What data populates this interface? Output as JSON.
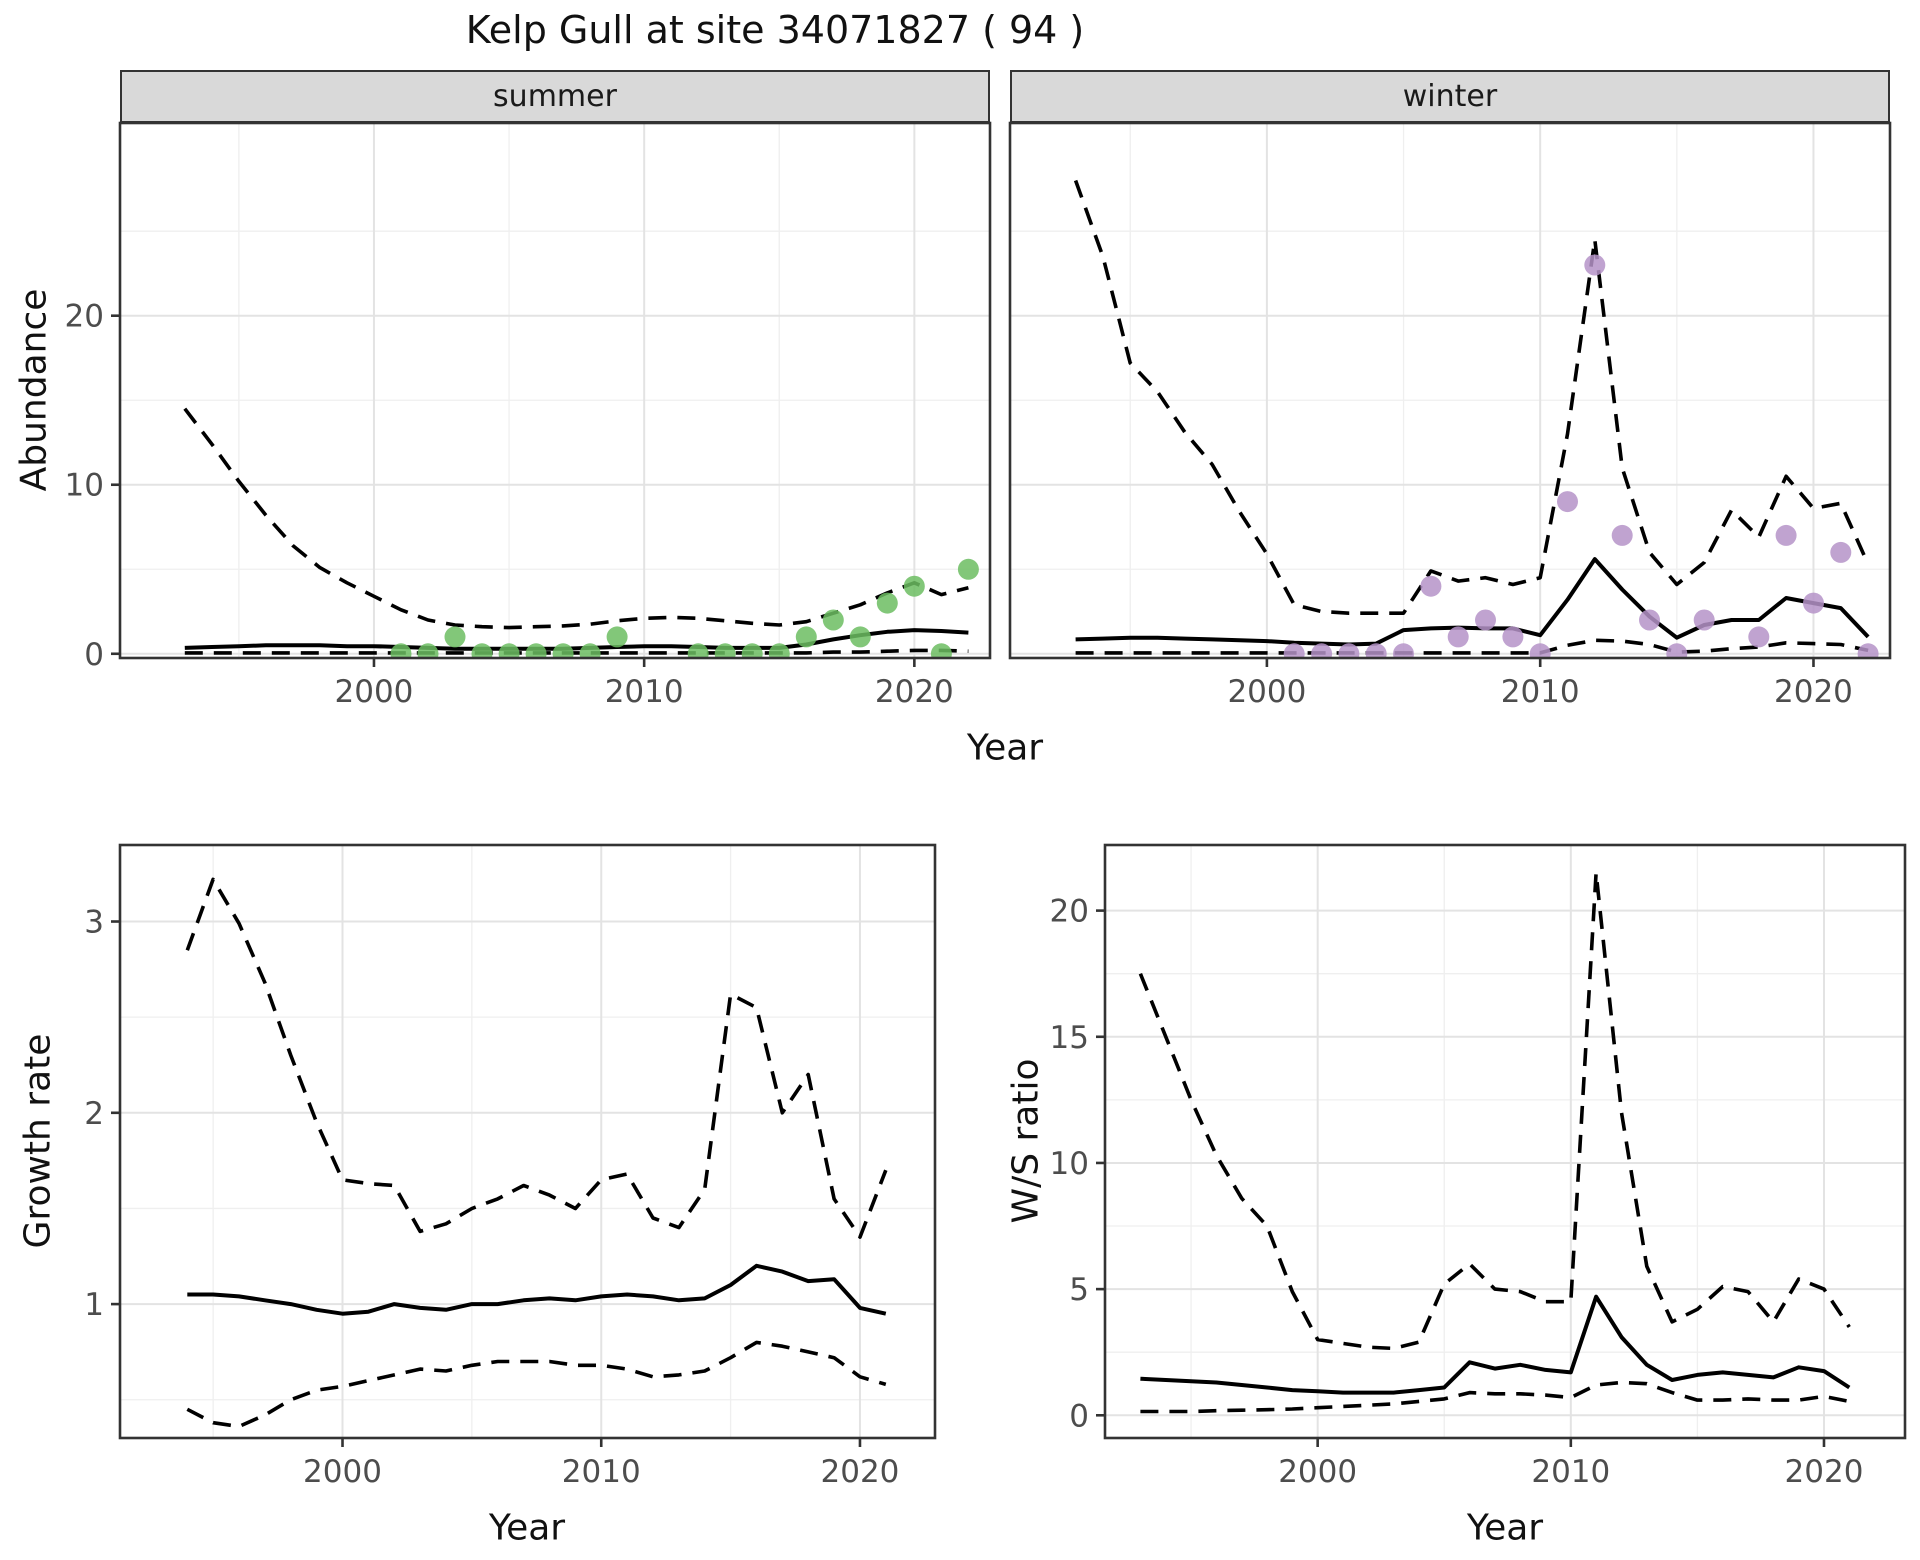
{
  "page": {
    "title": "Kelp Gull at site 34071827 ( 94 )"
  },
  "labels": {
    "abundance": "Abundance",
    "growth": "Growth rate",
    "ws": "W/S ratio",
    "year": "Year"
  },
  "top_row": {
    "facets": [
      "summer",
      "winter"
    ]
  },
  "colors": {
    "summer_point": "#6cbd62",
    "winter_point": "#b593c8",
    "strip_bg": "#d9d9d9",
    "panel_border": "#333333",
    "grid_major": "#e3e3e3",
    "grid_minor": "#efefef",
    "tick_text": "#4d4d4d",
    "line": "#000000",
    "background": "#ffffff"
  },
  "chart_data": [
    {
      "id": "abundance-summer",
      "type": "line+scatter",
      "title": "summer",
      "xlabel": "Year",
      "ylabel": "Abundance",
      "panel": {
        "l": 120,
        "r": 990,
        "t": 123,
        "b": 658
      },
      "xlim": [
        1990.6,
        2022.8
      ],
      "ylim": [
        -0.25,
        31.4
      ],
      "xticks": [
        2000,
        2010,
        2020
      ],
      "xminor": [
        1995,
        2005,
        2015
      ],
      "yticks": [
        0,
        10,
        20
      ],
      "yminor": [
        5,
        15,
        25
      ],
      "draw_yticks": true,
      "legend": "none",
      "grid": true,
      "series": {
        "x": [
          1993,
          1994,
          1995,
          1996,
          1997,
          1998,
          1999,
          2000,
          2001,
          2002,
          2003,
          2004,
          2005,
          2006,
          2007,
          2008,
          2009,
          2010,
          2011,
          2012,
          2013,
          2014,
          2015,
          2016,
          2017,
          2018,
          2019,
          2020,
          2021,
          2022
        ],
        "upper_dashed": [
          14.5,
          12.4,
          10.2,
          8.2,
          6.4,
          5.1,
          4.2,
          3.4,
          2.6,
          2.0,
          1.7,
          1.6,
          1.55,
          1.6,
          1.65,
          1.75,
          1.95,
          2.1,
          2.15,
          2.1,
          1.95,
          1.8,
          1.7,
          1.9,
          2.4,
          2.9,
          3.6,
          4.2,
          3.5,
          3.9
        ],
        "median_solid": [
          0.35,
          0.4,
          0.45,
          0.5,
          0.5,
          0.5,
          0.45,
          0.45,
          0.4,
          0.35,
          0.3,
          0.3,
          0.3,
          0.3,
          0.3,
          0.35,
          0.4,
          0.45,
          0.45,
          0.4,
          0.35,
          0.35,
          0.35,
          0.55,
          0.85,
          1.1,
          1.3,
          1.4,
          1.35,
          1.25
        ],
        "lower_dashed": [
          0.05,
          0.05,
          0.05,
          0.05,
          0.05,
          0.05,
          0.05,
          0.05,
          0.05,
          0.05,
          0.05,
          0.05,
          0.05,
          0.05,
          0.05,
          0.05,
          0.05,
          0.05,
          0.05,
          0.05,
          0.05,
          0.05,
          0.05,
          0.05,
          0.1,
          0.1,
          0.15,
          0.2,
          0.2,
          0.15
        ]
      },
      "points": {
        "color": "#6cbd62",
        "x": [
          2001,
          2002,
          2003,
          2004,
          2005,
          2006,
          2007,
          2008,
          2009,
          2012,
          2013,
          2014,
          2015,
          2016,
          2017,
          2018,
          2019,
          2020,
          2021,
          2022
        ],
        "y": [
          0,
          0,
          1,
          0,
          0,
          0,
          0,
          0,
          1,
          0,
          0,
          0,
          0,
          1,
          2,
          1,
          3,
          4,
          0,
          5
        ]
      }
    },
    {
      "id": "abundance-winter",
      "type": "line+scatter",
      "title": "winter",
      "xlabel": "Year",
      "ylabel": "Abundance",
      "panel": {
        "l": 1010,
        "r": 1890,
        "t": 123,
        "b": 658
      },
      "xlim": [
        1990.6,
        2022.8
      ],
      "ylim": [
        -0.25,
        31.4
      ],
      "xticks": [
        2000,
        2010,
        2020
      ],
      "xminor": [
        1995,
        2005,
        2015
      ],
      "yticks": [
        0,
        10,
        20
      ],
      "yminor": [
        5,
        15,
        25
      ],
      "draw_yticks": false,
      "legend": "none",
      "grid": true,
      "series": {
        "x": [
          1993,
          1994,
          1995,
          1996,
          1997,
          1998,
          1999,
          2000,
          2001,
          2002,
          2003,
          2004,
          2005,
          2006,
          2007,
          2008,
          2009,
          2010,
          2011,
          2012,
          2013,
          2014,
          2015,
          2016,
          2017,
          2018,
          2019,
          2020,
          2021,
          2022
        ],
        "upper_dashed": [
          28.0,
          23.5,
          17.2,
          15.5,
          13.1,
          11.2,
          8.4,
          5.9,
          2.9,
          2.5,
          2.4,
          2.4,
          2.4,
          4.9,
          4.3,
          4.5,
          4.1,
          4.5,
          13.0,
          24.5,
          11.0,
          6.0,
          4.1,
          5.4,
          8.5,
          6.9,
          10.5,
          8.6,
          8.9,
          5.3
        ],
        "median_solid": [
          0.85,
          0.9,
          0.95,
          0.95,
          0.9,
          0.85,
          0.8,
          0.75,
          0.65,
          0.6,
          0.55,
          0.6,
          1.4,
          1.5,
          1.55,
          1.5,
          1.5,
          1.1,
          3.2,
          5.6,
          3.8,
          2.2,
          0.95,
          1.7,
          2.0,
          2.0,
          3.3,
          3.0,
          2.7,
          1.0
        ],
        "lower_dashed": [
          0.05,
          0.05,
          0.05,
          0.05,
          0.05,
          0.05,
          0.05,
          0.05,
          0.05,
          0.05,
          0.05,
          0.05,
          0.05,
          0.05,
          0.05,
          0.05,
          0.05,
          0.05,
          0.5,
          0.8,
          0.75,
          0.55,
          0.1,
          0.15,
          0.3,
          0.4,
          0.65,
          0.6,
          0.55,
          0.2
        ]
      },
      "points": {
        "color": "#b593c8",
        "x": [
          2001,
          2002,
          2003,
          2004,
          2005,
          2006,
          2007,
          2008,
          2009,
          2010,
          2011,
          2012,
          2013,
          2014,
          2015,
          2016,
          2018,
          2019,
          2020,
          2021,
          2022
        ],
        "y": [
          0,
          0,
          0,
          0,
          0,
          4,
          1,
          2,
          1,
          0,
          9,
          23,
          7,
          2,
          0,
          2,
          1,
          7,
          3,
          6,
          0
        ]
      }
    },
    {
      "id": "growth-rate",
      "type": "line",
      "title": "",
      "xlabel": "Year",
      "ylabel": "Growth rate",
      "panel": {
        "l": 120,
        "r": 935,
        "t": 845,
        "b": 1438
      },
      "xlim": [
        1991.4,
        2022.9
      ],
      "ylim": [
        0.3,
        3.4
      ],
      "xticks": [
        2000,
        2010,
        2020
      ],
      "xminor": [
        1995,
        2005,
        2015
      ],
      "yticks": [
        1,
        2,
        3
      ],
      "yminor": [
        0.5,
        1.5,
        2.5
      ],
      "draw_yticks": true,
      "legend": "none",
      "grid": true,
      "series": {
        "x": [
          1994,
          1995,
          1996,
          1997,
          1998,
          1999,
          2000,
          2001,
          2002,
          2003,
          2004,
          2005,
          2006,
          2007,
          2008,
          2009,
          2010,
          2011,
          2012,
          2013,
          2014,
          2015,
          2016,
          2017,
          2018,
          2019,
          2020,
          2021
        ],
        "upper_dashed": [
          2.85,
          3.22,
          2.99,
          2.68,
          2.3,
          1.95,
          1.65,
          1.63,
          1.62,
          1.38,
          1.42,
          1.5,
          1.55,
          1.62,
          1.57,
          1.5,
          1.65,
          1.68,
          1.45,
          1.4,
          1.6,
          2.62,
          2.55,
          2.0,
          2.2,
          1.55,
          1.35,
          1.7
        ],
        "median_solid": [
          1.05,
          1.05,
          1.04,
          1.02,
          1.0,
          0.97,
          0.95,
          0.96,
          1.0,
          0.98,
          0.97,
          1.0,
          1.0,
          1.02,
          1.03,
          1.02,
          1.04,
          1.05,
          1.04,
          1.02,
          1.03,
          1.1,
          1.2,
          1.17,
          1.12,
          1.13,
          0.98,
          0.95
        ],
        "lower_dashed": [
          0.45,
          0.38,
          0.36,
          0.42,
          0.5,
          0.55,
          0.57,
          0.6,
          0.63,
          0.66,
          0.65,
          0.68,
          0.7,
          0.7,
          0.7,
          0.68,
          0.68,
          0.66,
          0.62,
          0.63,
          0.65,
          0.72,
          0.8,
          0.78,
          0.75,
          0.72,
          0.62,
          0.58
        ]
      },
      "points": {
        "color": "none",
        "x": [],
        "y": []
      }
    },
    {
      "id": "ws-ratio",
      "type": "line",
      "title": "",
      "xlabel": "Year",
      "ylabel": "W/S ratio",
      "panel": {
        "l": 1105,
        "r": 1905,
        "t": 845,
        "b": 1438
      },
      "xlim": [
        1991.6,
        2023.2
      ],
      "ylim": [
        -0.9,
        22.6
      ],
      "xticks": [
        2000,
        2010,
        2020
      ],
      "xminor": [
        1995,
        2005,
        2015
      ],
      "yticks": [
        0,
        5,
        10,
        15,
        20
      ],
      "yminor": [
        2.5,
        7.5,
        12.5,
        17.5
      ],
      "draw_yticks": true,
      "legend": "none",
      "grid": true,
      "series": {
        "x": [
          1993,
          1994,
          1995,
          1996,
          1997,
          1998,
          1999,
          2000,
          2001,
          2002,
          2003,
          2004,
          2005,
          2006,
          2007,
          2008,
          2009,
          2010,
          2011,
          2012,
          2013,
          2014,
          2015,
          2016,
          2017,
          2018,
          2019,
          2020,
          2021
        ],
        "upper_dashed": [
          17.5,
          15.0,
          12.5,
          10.3,
          8.6,
          7.5,
          4.9,
          3.0,
          2.85,
          2.7,
          2.65,
          2.9,
          5.2,
          6.0,
          5.0,
          4.9,
          4.5,
          4.5,
          21.5,
          12.0,
          5.9,
          3.7,
          4.2,
          5.1,
          4.9,
          3.7,
          5.4,
          5.0,
          3.5
        ],
        "median_solid": [
          1.45,
          1.4,
          1.35,
          1.3,
          1.2,
          1.1,
          1.0,
          0.95,
          0.9,
          0.9,
          0.9,
          1.0,
          1.1,
          2.1,
          1.85,
          2.0,
          1.8,
          1.7,
          4.7,
          3.1,
          2.0,
          1.4,
          1.6,
          1.7,
          1.6,
          1.5,
          1.9,
          1.75,
          1.1
        ],
        "lower_dashed": [
          0.15,
          0.15,
          0.15,
          0.18,
          0.2,
          0.22,
          0.25,
          0.3,
          0.35,
          0.4,
          0.45,
          0.55,
          0.65,
          0.9,
          0.85,
          0.85,
          0.8,
          0.7,
          1.2,
          1.3,
          1.25,
          0.9,
          0.6,
          0.6,
          0.65,
          0.6,
          0.6,
          0.75,
          0.55
        ]
      },
      "points": {
        "color": "none",
        "x": [],
        "y": []
      }
    }
  ]
}
